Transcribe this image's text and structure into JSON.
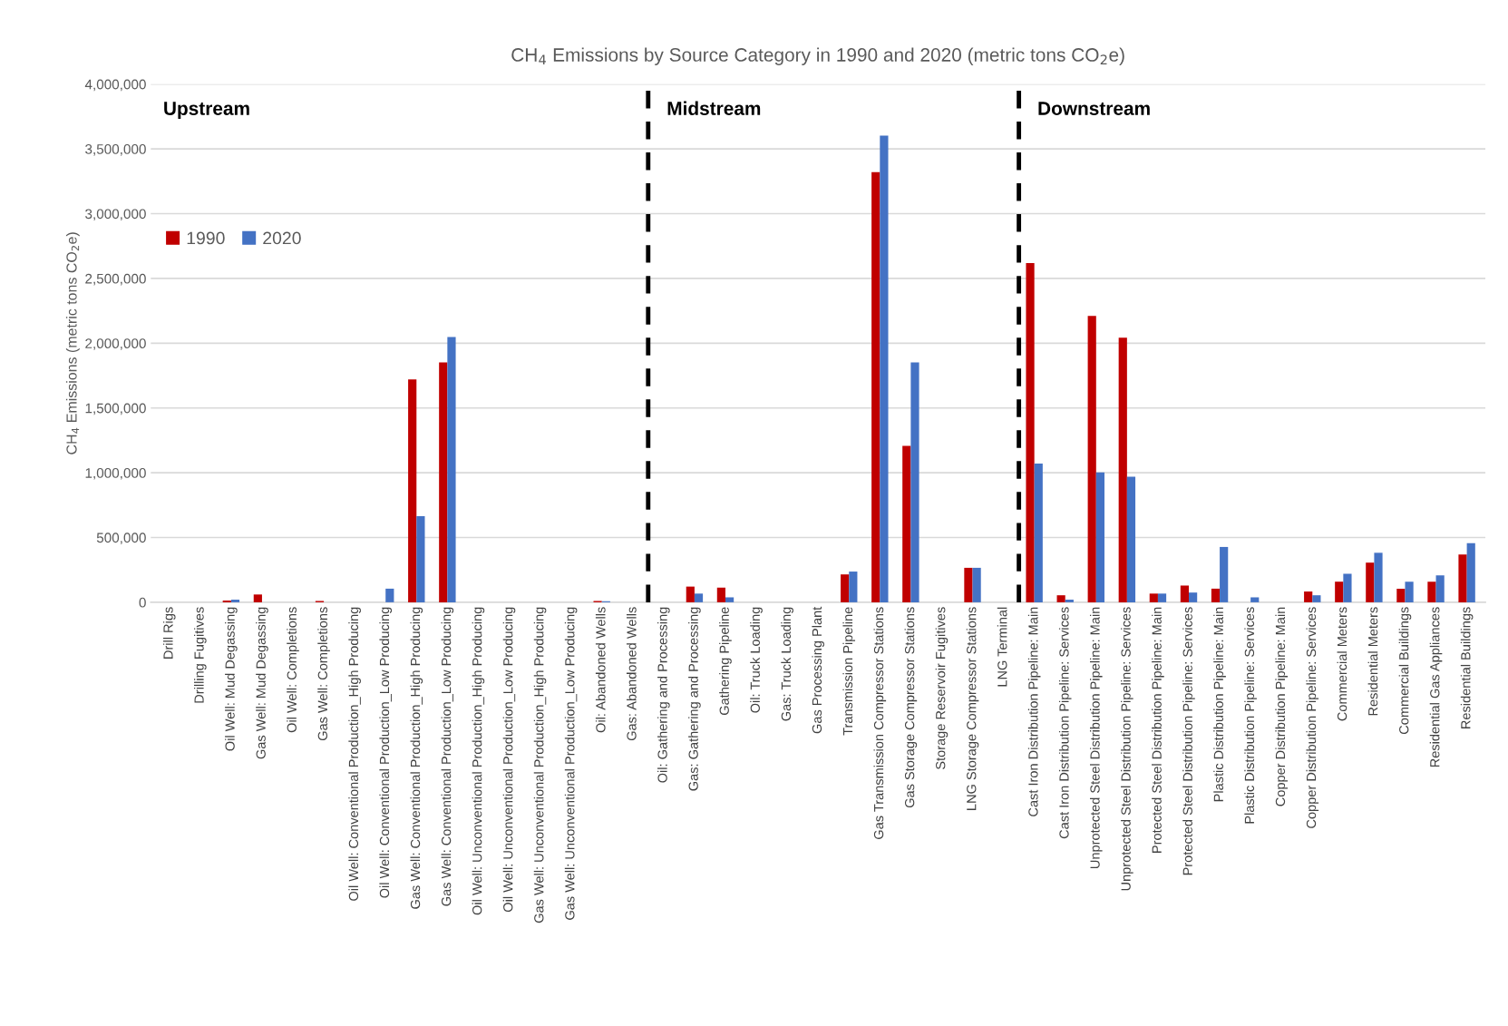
{
  "chart_data": {
    "type": "bar",
    "title": "CH$_{4}$ Emissions by Source Category in 1990 and 2020 (metric tons CO$_{2}$e)",
    "ylabel": "CH$_{4}$ Emissions (metric tons CO$_{2}$e)",
    "categories": [
      "Drill Rigs",
      "Drilling Fugitives",
      "Oil Well: Mud Degassing",
      "Gas Well: Mud Degassing",
      "Oil Well: Completions",
      "Gas Well: Completions",
      "Oil Well: Conventional Production_High Producing",
      "Oil Well: Conventional Production_Low Producing",
      "Gas Well: Conventional Production_High Producing",
      "Gas Well: Conventional Production_Low Producing",
      "Oil Well: Unconventional Production_High Producing",
      "Oil Well: Unconventional Production_Low Producing",
      "Gas Well: Unconventional Production_High Producing",
      "Gas Well: Unconventional Production_Low Producing",
      "Oil: Abandoned Wells",
      "Gas: Abandoned Wells",
      "Oil: Gathering and Processing",
      "Gas: Gathering and Processing",
      "Gathering Pipeline",
      "Oil: Truck Loading",
      "Gas: Truck Loading",
      "Gas Processing Plant",
      "Transmission Pipeline",
      "Gas Transmission Compressor Stations",
      "Gas Storage Compressor Stations",
      "Storage Reservoir Fugitives",
      "LNG Storage Compressor Stations",
      "LNG Terminal",
      "Cast Iron Distribution Pipeline: Main",
      "Cast Iron Distribution Pipeline: Services",
      "Unprotected Steel Distribution Pipeline: Main",
      "Unprotected Steel Distribution Pipeline: Services",
      "Protected Steel Distribution Pipeline: Main",
      "Protected Steel Distribution Pipeline: Services",
      "Plastic Distribution Pipeline: Main",
      "Plastic Distribution Pipeline: Services",
      "Copper Distribution Pipeline: Main",
      "Copper Distribution Pipeline: Services",
      "Commercial Meters",
      "Residential Meters",
      "Commercial Buildings",
      "Residential Gas Appliances",
      "Residential Buildings"
    ],
    "series": [
      {
        "name": "1990",
        "color": "#c00000",
        "values": [
          0,
          0,
          13000,
          60000,
          0,
          10000,
          0,
          0,
          1720000,
          1852000,
          0,
          0,
          0,
          0,
          10000,
          0,
          0,
          121000,
          113000,
          0,
          0,
          0,
          215000,
          3320000,
          1207000,
          0,
          266000,
          0,
          2618000,
          54000,
          2210000,
          2043000,
          67000,
          129000,
          105000,
          0,
          0,
          83000,
          159000,
          306000,
          105000,
          159000,
          368000
        ]
      },
      {
        "name": "2020",
        "color": "#4472c4",
        "values": [
          0,
          0,
          20000,
          0,
          0,
          0,
          0,
          105000,
          664000,
          2048000,
          0,
          0,
          0,
          0,
          8000,
          0,
          0,
          67000,
          38000,
          0,
          0,
          0,
          237000,
          3602000,
          1852000,
          0,
          266000,
          0,
          1070000,
          20000,
          1003000,
          970000,
          67000,
          75000,
          427000,
          38000,
          0,
          54000,
          220000,
          382000,
          159000,
          207000,
          457000
        ]
      }
    ],
    "ylim": [
      0,
      4000000
    ],
    "yticks": [
      0,
      {
        "value": 500000,
        "label": "500,000"
      },
      {
        "value": 1000000,
        "label": "1,000,000"
      },
      {
        "value": 1500000,
        "label": "1,500,000"
      },
      {
        "value": 2000000,
        "label": "2,000,000"
      },
      {
        "value": 2500000,
        "label": "2,500,000"
      },
      {
        "value": 3000000,
        "label": "3,000,000"
      },
      {
        "value": 3500000,
        "label": "3,500,000"
      },
      {
        "value": 4000000,
        "label": "4,000,000"
      }
    ],
    "grid": "y",
    "legend": "left",
    "annotations": [
      "Upstream",
      "Midstream",
      "Downstream"
    ]
  }
}
